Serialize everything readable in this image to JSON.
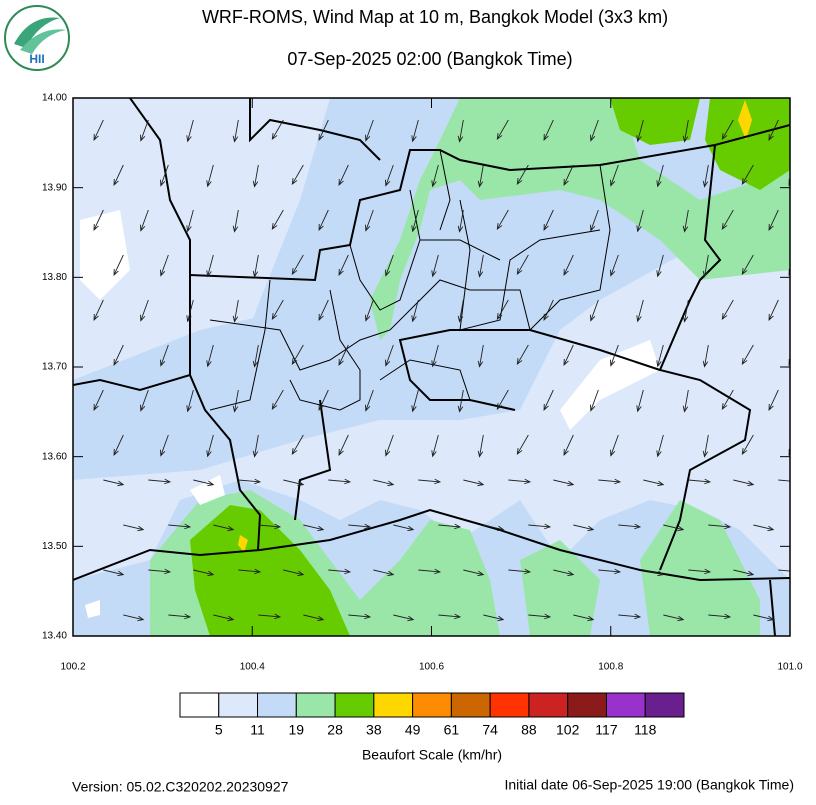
{
  "logo": {
    "text": "HII"
  },
  "header": {
    "title": "WRF-ROMS, Wind Map at 10 m, Bangkok Model (3x3 km)",
    "subtitle": "07-Sep-2025 02:00 (Bangkok Time)"
  },
  "map": {
    "xlim": [
      100.2,
      101.0
    ],
    "ylim": [
      13.4,
      14.0
    ],
    "xticks": [
      100.2,
      100.4,
      100.6,
      100.8,
      {
        "value": 101.0,
        "label": "101.0"
      }
    ],
    "yticks": [
      {
        "value": 13.4,
        "label": "13.40"
      },
      {
        "value": 13.5,
        "label": "13.50"
      },
      {
        "value": 13.6,
        "label": "13.60"
      },
      {
        "value": 13.7,
        "label": "13.70"
      },
      {
        "value": 13.8,
        "label": "13.80"
      },
      {
        "value": 13.9,
        "label": "13.90"
      },
      {
        "value": 14.0,
        "label": "14.00"
      }
    ]
  },
  "colorbar": {
    "title": "Beaufort Scale (km/hr)",
    "colors": [
      "#ffffff",
      "#dde9fb",
      "#c4dbf7",
      "#99e6a8",
      "#66cc00",
      "#ffd700",
      "#ff8c00",
      "#cc6600",
      "#ff3300",
      "#cc2222",
      "#8b1a1a",
      "#9932cc",
      "#6a1f8f"
    ],
    "labels": [
      "5",
      "11",
      "19",
      "28",
      "38",
      "49",
      "61",
      "74",
      "88",
      "102",
      "117",
      "118"
    ]
  },
  "footer": {
    "version": "Version: 05.02.C320202.20230927",
    "initial": "Initial date 06-Sep-2025 19:00 (Bangkok Time)"
  }
}
